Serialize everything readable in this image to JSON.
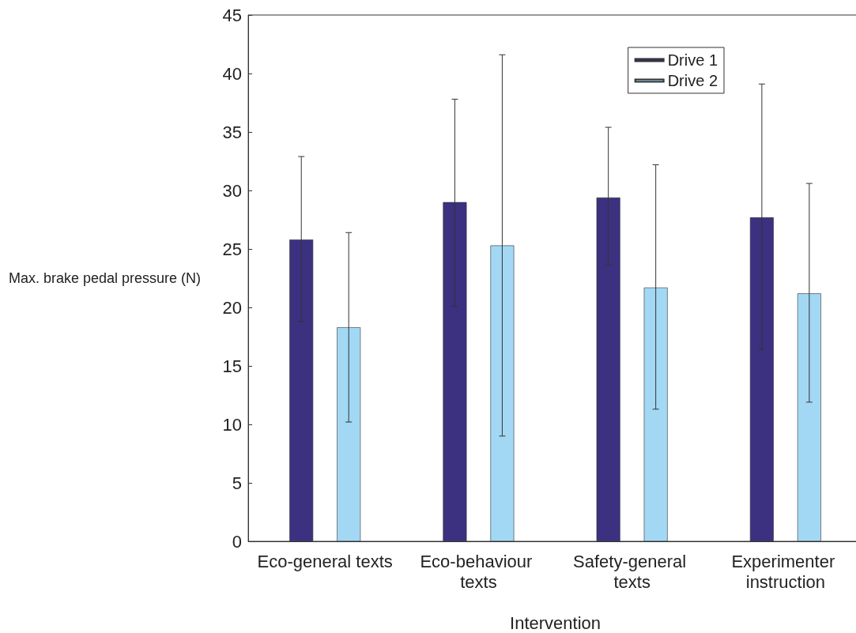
{
  "chart_data": {
    "type": "bar",
    "xlabel": "Intervention",
    "ylabel": "Max. brake pedal pressure (N)",
    "categories": [
      "Eco-general texts",
      "Eco-behaviour texts",
      "Safety-general texts",
      "Experimenter instruction"
    ],
    "series": [
      {
        "name": "Drive 1",
        "color": "#3b3180",
        "values": [
          25.8,
          29.0,
          29.4,
          27.7
        ],
        "errors": [
          [
            18.8,
            32.9
          ],
          [
            20.1,
            37.8
          ],
          [
            23.6,
            35.4
          ],
          [
            16.4,
            39.1
          ]
        ]
      },
      {
        "name": "Drive 2",
        "color": "#a3d8f5",
        "values": [
          18.3,
          25.3,
          21.7,
          21.2
        ],
        "errors": [
          [
            10.2,
            26.4
          ],
          [
            9.0,
            41.6
          ],
          [
            11.3,
            32.2
          ],
          [
            11.9,
            30.6
          ]
        ]
      }
    ],
    "ylim": [
      0,
      45
    ],
    "yticks": [
      0,
      5,
      10,
      15,
      20,
      25,
      30,
      35,
      40,
      45
    ],
    "grid": false,
    "legend": "top right"
  }
}
